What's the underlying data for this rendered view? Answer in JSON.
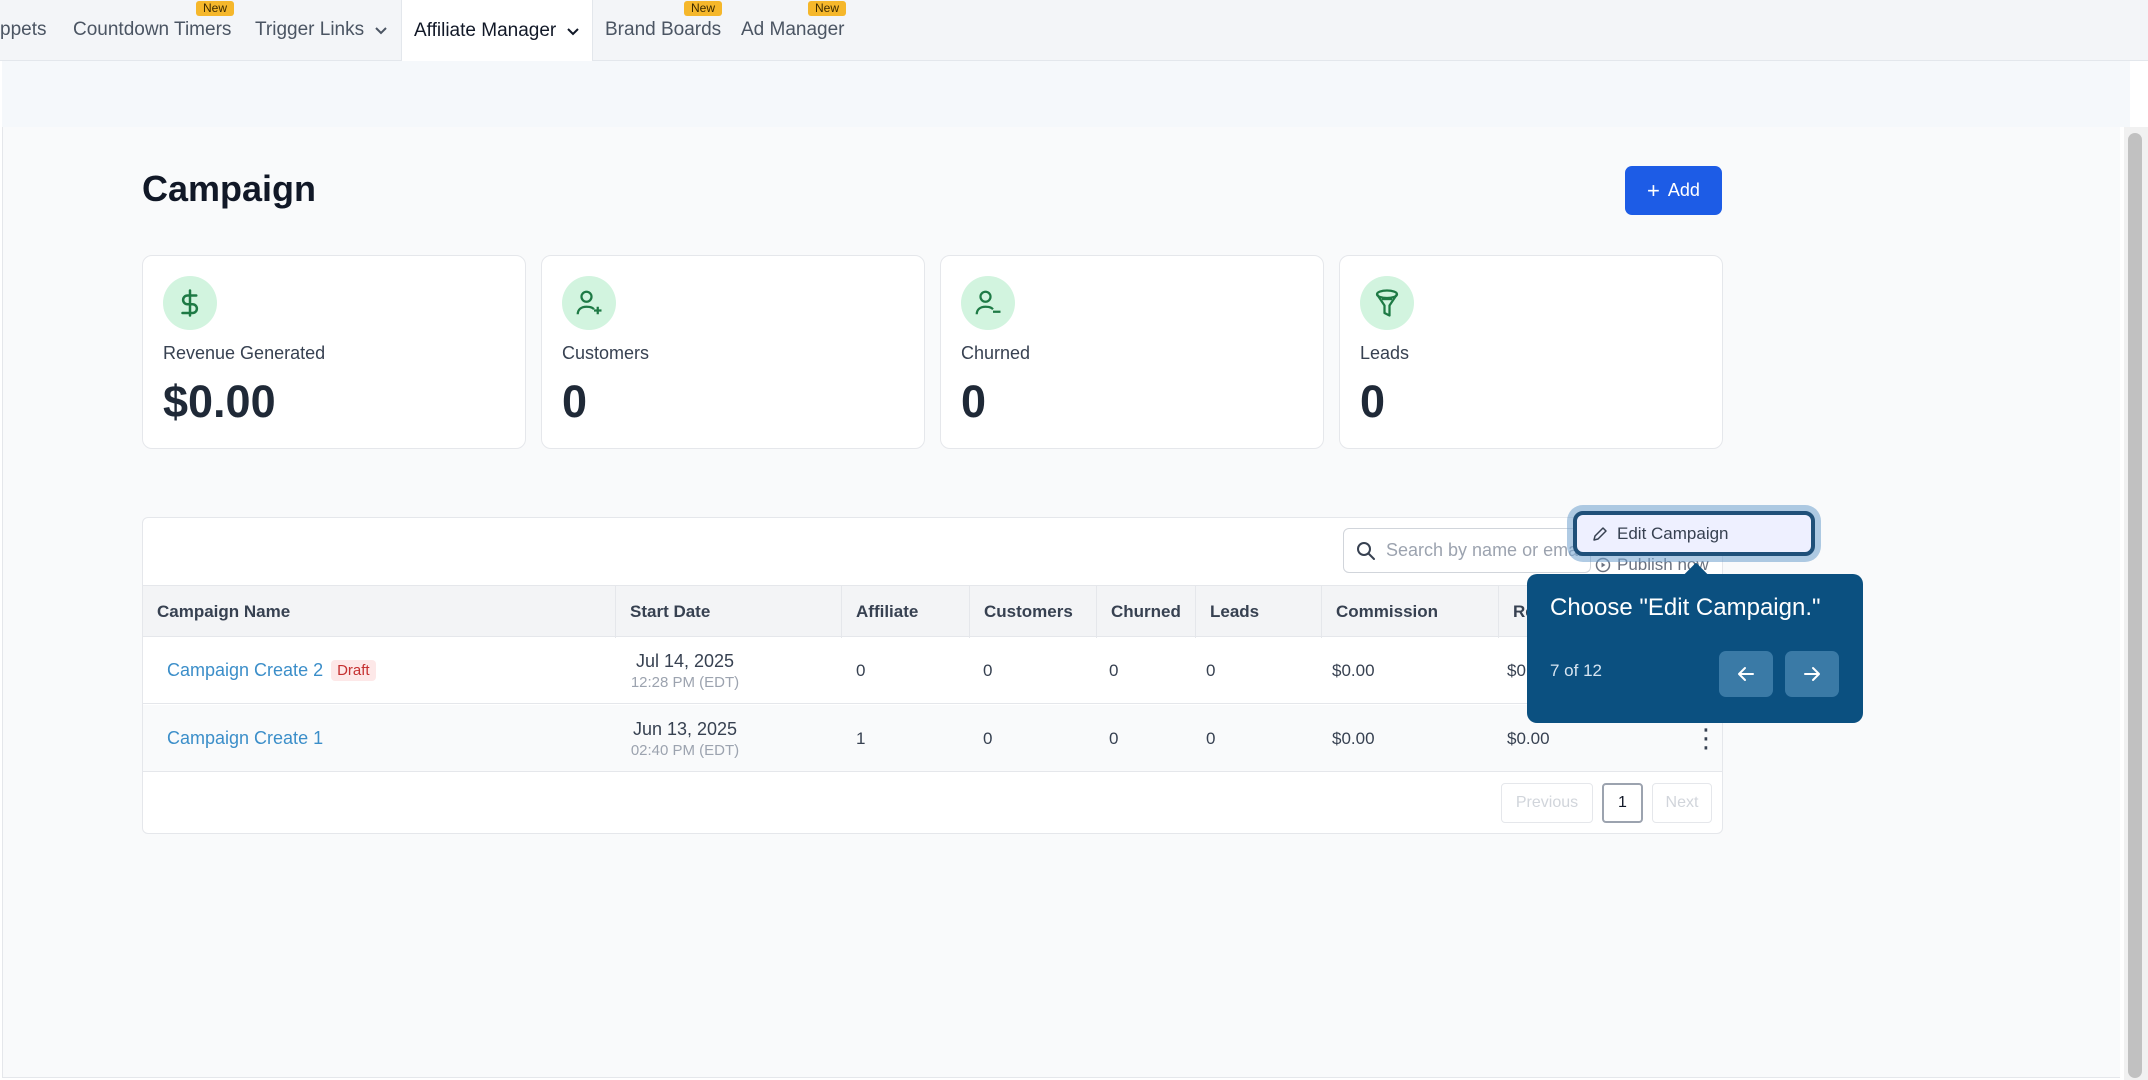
{
  "nav": {
    "items": [
      {
        "label": "ppets",
        "badge": ""
      },
      {
        "label": "Countdown Timers",
        "badge": "New"
      },
      {
        "label": "Trigger Links",
        "badge": ""
      },
      {
        "label": "Affiliate Manager",
        "badge": ""
      },
      {
        "label": "Brand Boards",
        "badge": "New"
      },
      {
        "label": "Ad Manager",
        "badge": "New"
      }
    ],
    "active": "Affiliate Manager"
  },
  "page": {
    "title": "Campaign",
    "add_label": "Add"
  },
  "stats": [
    {
      "label": "Revenue Generated",
      "value": "$0.00",
      "icon": "dollar-icon"
    },
    {
      "label": "Customers",
      "value": "0",
      "icon": "user-plus-icon"
    },
    {
      "label": "Churned",
      "value": "0",
      "icon": "user-minus-icon"
    },
    {
      "label": "Leads",
      "value": "0",
      "icon": "funnel-icon"
    }
  ],
  "table": {
    "search_placeholder": "Search by name or email",
    "columns": [
      "Campaign Name",
      "Start Date",
      "Affiliate",
      "Customers",
      "Churned",
      "Leads",
      "Commission",
      "Re"
    ],
    "rows": [
      {
        "name": "Campaign Create 2",
        "status": "Draft",
        "date": "Jul 14, 2025",
        "time": "12:28 PM (EDT)",
        "affiliate": "0",
        "customers": "0",
        "churned": "0",
        "leads": "0",
        "commission": "$0.00",
        "revenue": "$0"
      },
      {
        "name": "Campaign Create 1",
        "status": "",
        "date": "Jun 13, 2025",
        "time": "02:40 PM (EDT)",
        "affiliate": "1",
        "customers": "0",
        "churned": "0",
        "leads": "0",
        "commission": "$0.00",
        "revenue": "$0.00"
      }
    ],
    "pagination": {
      "previous": "Previous",
      "current": "1",
      "next": "Next"
    }
  },
  "menu": {
    "edit": "Edit Campaign",
    "publish": "Publish now"
  },
  "tooltip": {
    "message": "Choose \"Edit Campaign.\"",
    "counter": "7 of 12"
  },
  "colors": {
    "primary": "#1d5ce6",
    "tooltip_bg": "#0b5080",
    "badge": "#f5b72b",
    "link": "#3b8ec9",
    "icon_bg": "#d2f4df"
  }
}
